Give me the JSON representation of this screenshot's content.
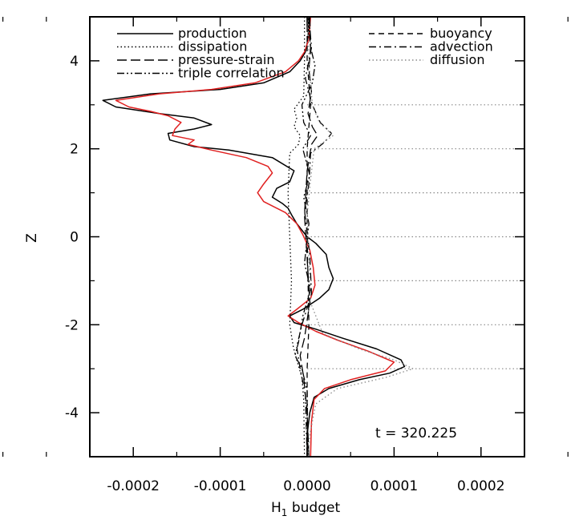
{
  "chart_data": {
    "type": "line",
    "xlabel": "H",
    "xlabel_subscript": "1",
    "xlabel_suffix": " budget",
    "ylabel": "Z",
    "xlim": [
      -0.00025,
      0.00025
    ],
    "ylim": [
      -5,
      5
    ],
    "x_ticks": [
      -0.0002,
      -0.0001,
      0.0,
      0.0001,
      0.0002
    ],
    "x_tick_labels": [
      "-0.0002",
      "-0.0001",
      "0.0000",
      "0.0001",
      "0.0002"
    ],
    "y_ticks": [
      -4,
      -2,
      0,
      2,
      4
    ],
    "y_tick_labels": [
      "-4",
      "-2",
      "0",
      "2",
      "4"
    ],
    "reference_lines_z": [
      3,
      2,
      1,
      0,
      -1,
      -2,
      -3
    ],
    "annotation": "t = 320.225",
    "legend_placement": "top",
    "legend_left": [
      "production",
      "dissipation",
      "pressure-strain",
      "triple correlation"
    ],
    "legend_right": [
      "buoyancy",
      "advection",
      "diffusion"
    ],
    "series": [
      {
        "name": "production",
        "color": "#000000",
        "dash": "solid",
        "points": [
          [
            2e-06,
            5.0
          ],
          [
            1e-06,
            4.5
          ],
          [
            -2e-06,
            4.2
          ],
          [
            -8e-06,
            4.0
          ],
          [
            -2e-05,
            3.75
          ],
          [
            -5e-05,
            3.5
          ],
          [
            -0.0001,
            3.35
          ],
          [
            -0.00018,
            3.25
          ],
          [
            -0.000235,
            3.1
          ],
          [
            -0.00022,
            2.95
          ],
          [
            -0.00017,
            2.8
          ],
          [
            -0.00013,
            2.7
          ],
          [
            -0.00011,
            2.55
          ],
          [
            -0.00013,
            2.45
          ],
          [
            -0.00016,
            2.35
          ],
          [
            -0.000158,
            2.2
          ],
          [
            -0.00013,
            2.05
          ],
          [
            -9e-05,
            1.97
          ],
          [
            -4e-05,
            1.8
          ],
          [
            -1.5e-05,
            1.5
          ],
          [
            -2e-05,
            1.25
          ],
          [
            -3.5e-05,
            1.1
          ],
          [
            -4e-05,
            0.9
          ],
          [
            -2.8e-05,
            0.75
          ],
          [
            -2.2e-05,
            0.65
          ],
          [
            -1.8e-05,
            0.5
          ],
          [
            -1.2e-05,
            0.3
          ],
          [
            0.0,
            0.0
          ],
          [
            1e-05,
            -0.15
          ],
          [
            2.2e-05,
            -0.4
          ],
          [
            2.5e-05,
            -0.7
          ],
          [
            3e-05,
            -0.95
          ],
          [
            2.5e-05,
            -1.2
          ],
          [
            1.4e-05,
            -1.4
          ],
          [
            -5e-06,
            -1.65
          ],
          [
            -2e-05,
            -1.8
          ],
          [
            -1.5e-05,
            -1.95
          ],
          [
            1e-05,
            -2.1
          ],
          [
            4e-05,
            -2.3
          ],
          [
            8e-05,
            -2.55
          ],
          [
            0.000108,
            -2.8
          ],
          [
            0.000112,
            -2.95
          ],
          [
            9.5e-05,
            -3.1
          ],
          [
            6e-05,
            -3.25
          ],
          [
            2.5e-05,
            -3.45
          ],
          [
            8e-06,
            -3.65
          ],
          [
            3e-06,
            -4.0
          ],
          [
            0.0,
            -4.5
          ],
          [
            0.0,
            -5.0
          ]
        ]
      },
      {
        "name": "production (red)",
        "color": "#e02020",
        "dash": "solid",
        "points": [
          [
            4e-06,
            5.0
          ],
          [
            2e-06,
            4.5
          ],
          [
            -3e-06,
            4.2
          ],
          [
            -1e-05,
            4.0
          ],
          [
            -2.5e-05,
            3.75
          ],
          [
            -6e-05,
            3.5
          ],
          [
            -0.00011,
            3.35
          ],
          [
            -0.00017,
            3.25
          ],
          [
            -0.00022,
            3.1
          ],
          [
            -0.000205,
            2.95
          ],
          [
            -0.00018,
            2.85
          ],
          [
            -0.00016,
            2.75
          ],
          [
            -0.000145,
            2.6
          ],
          [
            -0.000152,
            2.45
          ],
          [
            -0.000155,
            2.3
          ],
          [
            -0.00013,
            2.2
          ],
          [
            -0.000137,
            2.1
          ],
          [
            -0.00011,
            1.97
          ],
          [
            -7e-05,
            1.8
          ],
          [
            -4.5e-05,
            1.6
          ],
          [
            -4e-05,
            1.45
          ],
          [
            -5e-05,
            1.2
          ],
          [
            -5.7e-05,
            1.0
          ],
          [
            -5e-05,
            0.8
          ],
          [
            -2.5e-05,
            0.55
          ],
          [
            -1.2e-05,
            0.3
          ],
          [
            -5e-06,
            0.05
          ],
          [
            3e-06,
            -0.3
          ],
          [
            7e-06,
            -0.7
          ],
          [
            9e-06,
            -1.1
          ],
          [
            4e-06,
            -1.4
          ],
          [
            -1.2e-05,
            -1.65
          ],
          [
            -2.2e-05,
            -1.8
          ],
          [
            -1e-05,
            -1.95
          ],
          [
            1e-05,
            -2.15
          ],
          [
            3.5e-05,
            -2.35
          ],
          [
            7e-05,
            -2.6
          ],
          [
            0.0001,
            -2.85
          ],
          [
            9e-05,
            -3.05
          ],
          [
            5e-05,
            -3.25
          ],
          [
            2e-05,
            -3.45
          ],
          [
            8e-06,
            -3.7
          ],
          [
            5e-06,
            -4.2
          ],
          [
            4e-06,
            -5.0
          ]
        ]
      },
      {
        "name": "dissipation",
        "color": "#000000",
        "dash": "dotted",
        "points": [
          [
            -3e-06,
            5.0
          ],
          [
            -3e-06,
            4.0
          ],
          [
            -4e-06,
            3.2
          ],
          [
            -1.5e-05,
            2.9
          ],
          [
            -1.2e-05,
            2.7
          ],
          [
            -1.5e-05,
            2.5
          ],
          [
            -8e-06,
            2.3
          ],
          [
            -1e-05,
            2.1
          ],
          [
            -2e-05,
            1.9
          ],
          [
            -2.2e-05,
            1.0
          ],
          [
            -2e-05,
            0.0
          ],
          [
            -1.8e-05,
            -1.0
          ],
          [
            -2e-05,
            -2.0
          ],
          [
            -1.6e-05,
            -2.5
          ],
          [
            -1.2e-05,
            -2.8
          ],
          [
            -6e-06,
            -3.2
          ],
          [
            -4e-06,
            -3.7
          ],
          [
            -3e-06,
            -5.0
          ]
        ]
      },
      {
        "name": "pressure-strain",
        "color": "#000000",
        "dash": "longdash",
        "points": [
          [
            3e-06,
            5.0
          ],
          [
            4e-06,
            4.3
          ],
          [
            2e-06,
            3.8
          ],
          [
            5e-06,
            3.3
          ],
          [
            1e-06,
            2.8
          ],
          [
            6e-06,
            2.5
          ],
          [
            1.2e-05,
            2.3
          ],
          [
            5e-06,
            2.1
          ],
          [
            0.0,
            1.5
          ],
          [
            -3e-06,
            0.5
          ],
          [
            0.0,
            -0.5
          ],
          [
            3e-06,
            -1.5
          ],
          [
            -3e-06,
            -2.3
          ],
          [
            -8e-06,
            -2.7
          ],
          [
            -4e-06,
            -3.2
          ],
          [
            0.0,
            -4.0
          ],
          [
            2e-06,
            -5.0
          ]
        ]
      },
      {
        "name": "triple correlation",
        "color": "#000000",
        "dash": "dashdotdot",
        "points": [
          [
            1e-06,
            5.0
          ],
          [
            4e-06,
            4.3
          ],
          [
            9e-06,
            3.9
          ],
          [
            6e-06,
            3.5
          ],
          [
            -6e-06,
            3.0
          ],
          [
            -4e-06,
            2.6
          ],
          [
            4e-06,
            2.3
          ],
          [
            -5e-06,
            2.0
          ],
          [
            3e-06,
            1.4
          ],
          [
            -4e-06,
            0.9
          ],
          [
            2e-06,
            0.3
          ],
          [
            -3e-06,
            -0.6
          ],
          [
            4e-06,
            -1.2
          ],
          [
            -5e-06,
            -1.8
          ],
          [
            -1e-05,
            -2.4
          ],
          [
            -1.4e-05,
            -2.7
          ],
          [
            -6e-06,
            -3.0
          ],
          [
            0.0,
            -3.5
          ],
          [
            1e-06,
            -5.0
          ]
        ]
      },
      {
        "name": "buoyancy",
        "color": "#000000",
        "dash": "dashed",
        "points": [
          [
            0.0,
            5.0
          ],
          [
            0.0,
            4.0
          ],
          [
            4e-06,
            3.0
          ],
          [
            0.0,
            2.0
          ],
          [
            0.0,
            0.0
          ],
          [
            2e-06,
            -2.0
          ],
          [
            0.0,
            -3.0
          ],
          [
            0.0,
            -5.0
          ]
        ]
      },
      {
        "name": "advection",
        "color": "#000000",
        "dash": "dashdot",
        "points": [
          [
            2e-06,
            5.0
          ],
          [
            5e-06,
            4.3
          ],
          [
            -2e-06,
            3.6
          ],
          [
            6e-06,
            3.0
          ],
          [
            1.5e-05,
            2.6
          ],
          [
            2.8e-05,
            2.35
          ],
          [
            2e-05,
            2.15
          ],
          [
            4e-06,
            1.9
          ],
          [
            2e-06,
            1.2
          ],
          [
            -3e-06,
            0.6
          ],
          [
            3e-06,
            -0.4
          ],
          [
            5e-06,
            -1.3
          ],
          [
            -6e-06,
            -2.0
          ],
          [
            -1.2e-05,
            -2.5
          ],
          [
            -8e-06,
            -3.0
          ],
          [
            -2e-06,
            -3.6
          ],
          [
            0.0,
            -5.0
          ]
        ]
      },
      {
        "name": "diffusion",
        "color": "#888888",
        "dash": "dotted",
        "points": [
          [
            1e-06,
            5.0
          ],
          [
            2e-06,
            4.0
          ],
          [
            6e-06,
            3.0
          ],
          [
            1.4e-05,
            2.6
          ],
          [
            3e-05,
            2.3
          ],
          [
            8e-06,
            2.0
          ],
          [
            4e-06,
            1.3
          ],
          [
            0.0,
            0.5
          ],
          [
            2e-06,
            -0.5
          ],
          [
            4e-06,
            -1.5
          ],
          [
            1.8e-05,
            -2.2
          ],
          [
            6e-05,
            -2.55
          ],
          [
            0.0001,
            -2.8
          ],
          [
            0.000122,
            -3.0
          ],
          [
            9e-05,
            -3.2
          ],
          [
            3.5e-05,
            -3.45
          ],
          [
            1e-05,
            -3.8
          ],
          [
            3e-06,
            -4.5
          ],
          [
            1e-06,
            -5.0
          ]
        ]
      }
    ]
  }
}
